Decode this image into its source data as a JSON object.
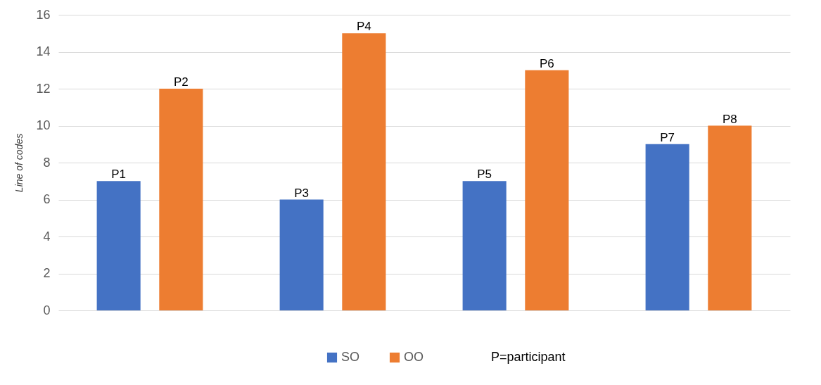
{
  "chart_data": {
    "type": "bar",
    "ylabel": "Line of codes",
    "categories": [
      null,
      null,
      null,
      null
    ],
    "series": [
      {
        "name": "SO",
        "color": "#4472c4",
        "values": [
          7,
          6,
          7,
          9
        ],
        "value_labels": [
          "P1",
          "P3",
          "P5",
          "P7"
        ]
      },
      {
        "name": "OO",
        "color": "#ed7d31",
        "values": [
          12,
          15,
          13,
          10
        ],
        "value_labels": [
          "P2",
          "P4",
          "P6",
          "P8"
        ]
      }
    ],
    "ylim": [
      0,
      16
    ],
    "yticks": [
      0,
      2,
      4,
      6,
      8,
      10,
      12,
      14,
      16
    ],
    "grid": "y",
    "legend": "bottom",
    "tick_labels": "y",
    "annotations": [
      "P=participant"
    ]
  }
}
